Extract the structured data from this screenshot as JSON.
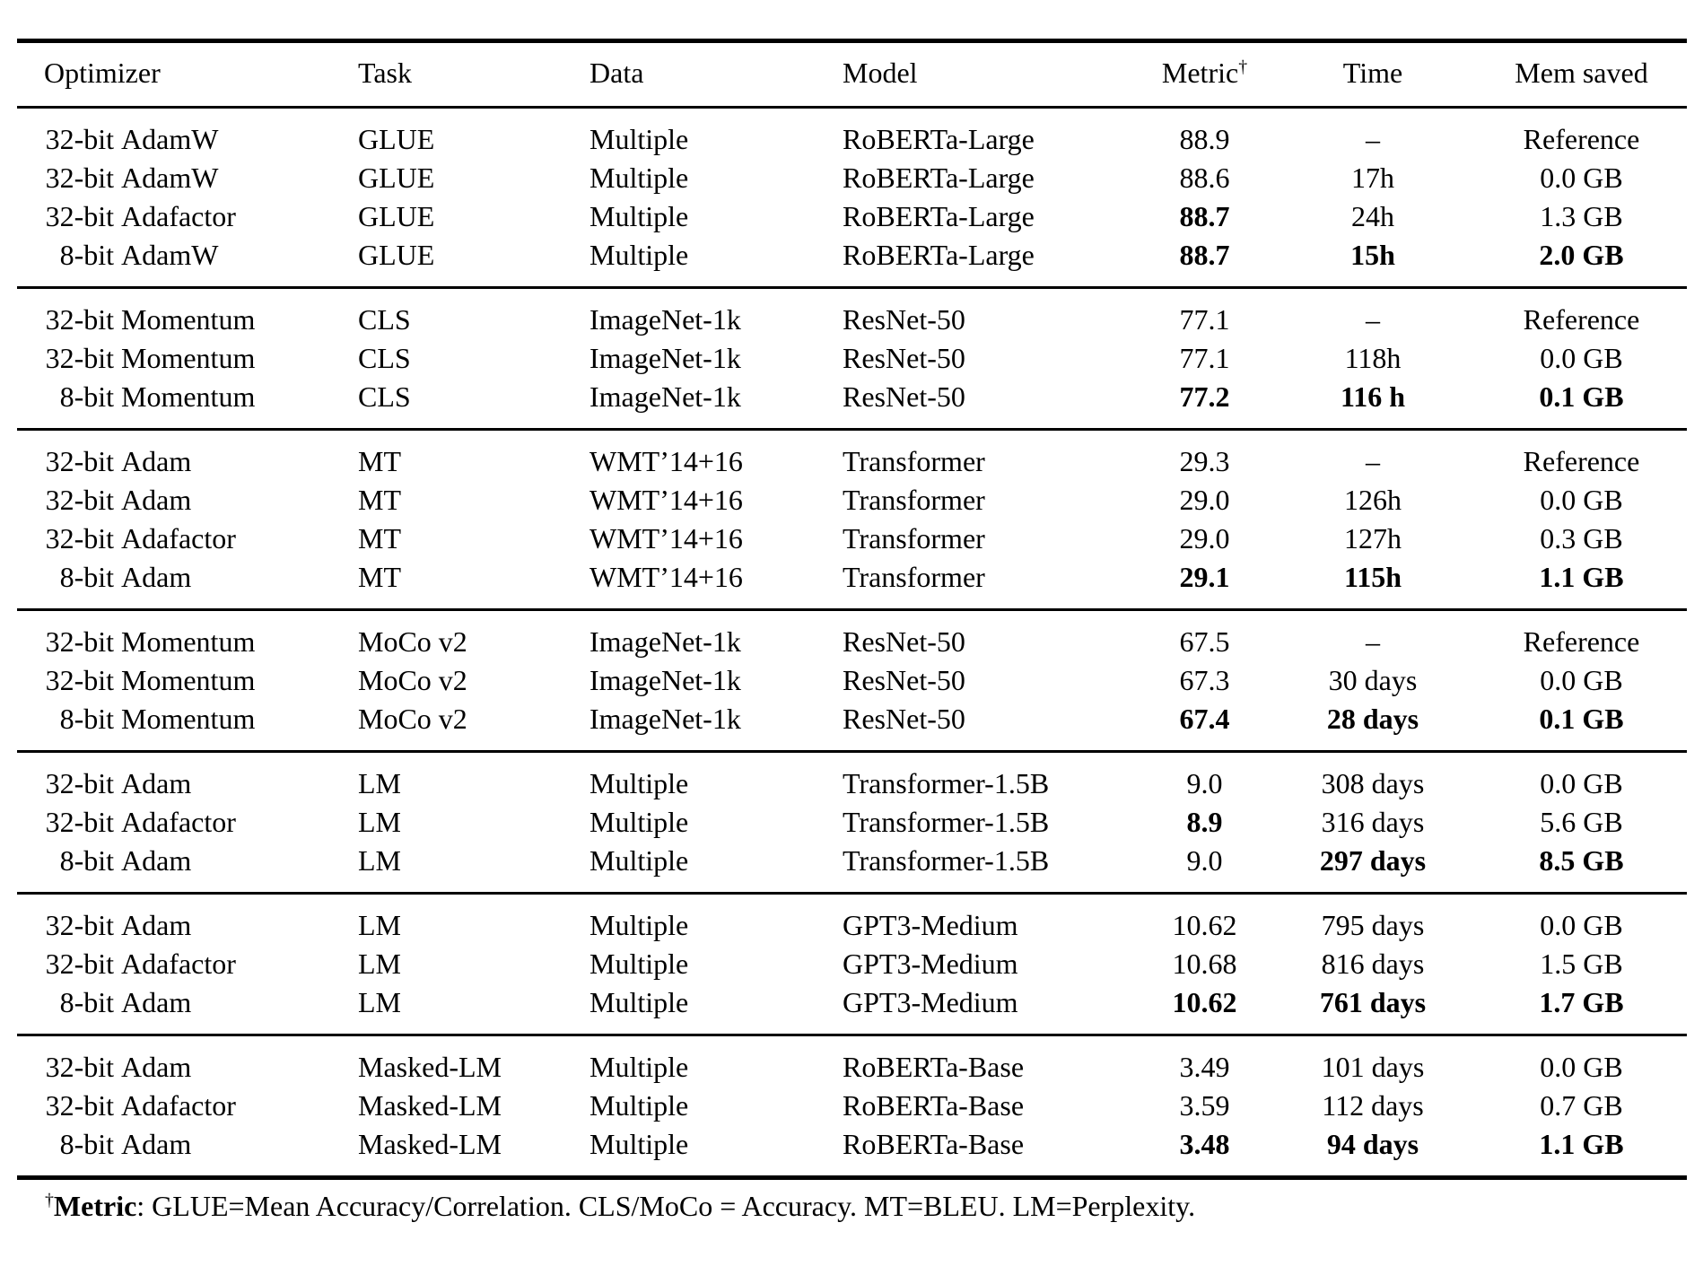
{
  "table": {
    "header": {
      "optimizer": "Optimizer",
      "task": "Task",
      "data": "Data",
      "model": "Model",
      "metric": "Metric",
      "metric_sup": "†",
      "time": "Time",
      "mem": "Mem saved"
    },
    "groups": [
      {
        "rows": [
          {
            "optimizer": {
              "bits": "32-bit",
              "name": "AdamW"
            },
            "task": "GLUE",
            "data": "Multiple",
            "model": "RoBERTa-Large",
            "metric": {
              "value": "88.9",
              "bold": false
            },
            "time": {
              "value": "–",
              "bold": false
            },
            "mem": {
              "value": "Reference",
              "bold": false
            }
          },
          {
            "optimizer": {
              "bits": "32-bit",
              "name": "AdamW"
            },
            "task": "GLUE",
            "data": "Multiple",
            "model": "RoBERTa-Large",
            "metric": {
              "value": "88.6",
              "bold": false
            },
            "time": {
              "value": "17h",
              "bold": false
            },
            "mem": {
              "value": "0.0 GB",
              "bold": false
            }
          },
          {
            "optimizer": {
              "bits": "32-bit",
              "name": "Adafactor"
            },
            "task": "GLUE",
            "data": "Multiple",
            "model": "RoBERTa-Large",
            "metric": {
              "value": "88.7",
              "bold": true
            },
            "time": {
              "value": "24h",
              "bold": false
            },
            "mem": {
              "value": "1.3 GB",
              "bold": false
            }
          },
          {
            "optimizer": {
              "bits": "8-bit",
              "name": "AdamW"
            },
            "task": "GLUE",
            "data": "Multiple",
            "model": "RoBERTa-Large",
            "metric": {
              "value": "88.7",
              "bold": true
            },
            "time": {
              "value": "15h",
              "bold": true
            },
            "mem": {
              "value": "2.0 GB",
              "bold": true
            }
          }
        ]
      },
      {
        "rows": [
          {
            "optimizer": {
              "bits": "32-bit",
              "name": "Momentum"
            },
            "task": "CLS",
            "data": "ImageNet-1k",
            "model": "ResNet-50",
            "metric": {
              "value": "77.1",
              "bold": false
            },
            "time": {
              "value": "–",
              "bold": false
            },
            "mem": {
              "value": "Reference",
              "bold": false
            }
          },
          {
            "optimizer": {
              "bits": "32-bit",
              "name": "Momentum"
            },
            "task": "CLS",
            "data": "ImageNet-1k",
            "model": "ResNet-50",
            "metric": {
              "value": "77.1",
              "bold": false
            },
            "time": {
              "value": "118h",
              "bold": false
            },
            "mem": {
              "value": "0.0 GB",
              "bold": false
            }
          },
          {
            "optimizer": {
              "bits": "8-bit",
              "name": "Momentum"
            },
            "task": "CLS",
            "data": "ImageNet-1k",
            "model": "ResNet-50",
            "metric": {
              "value": "77.2",
              "bold": true
            },
            "time": {
              "value": "116 h",
              "bold": true
            },
            "mem": {
              "value": "0.1 GB",
              "bold": true
            }
          }
        ]
      },
      {
        "rows": [
          {
            "optimizer": {
              "bits": "32-bit",
              "name": "Adam"
            },
            "task": "MT",
            "data": "WMT’14+16",
            "model": "Transformer",
            "metric": {
              "value": "29.3",
              "bold": false
            },
            "time": {
              "value": "–",
              "bold": false
            },
            "mem": {
              "value": "Reference",
              "bold": false
            }
          },
          {
            "optimizer": {
              "bits": "32-bit",
              "name": "Adam"
            },
            "task": "MT",
            "data": "WMT’14+16",
            "model": "Transformer",
            "metric": {
              "value": "29.0",
              "bold": false
            },
            "time": {
              "value": "126h",
              "bold": false
            },
            "mem": {
              "value": "0.0 GB",
              "bold": false
            }
          },
          {
            "optimizer": {
              "bits": "32-bit",
              "name": "Adafactor"
            },
            "task": "MT",
            "data": "WMT’14+16",
            "model": "Transformer",
            "metric": {
              "value": "29.0",
              "bold": false
            },
            "time": {
              "value": "127h",
              "bold": false
            },
            "mem": {
              "value": "0.3 GB",
              "bold": false
            }
          },
          {
            "optimizer": {
              "bits": "8-bit",
              "name": "Adam"
            },
            "task": "MT",
            "data": "WMT’14+16",
            "model": "Transformer",
            "metric": {
              "value": "29.1",
              "bold": true
            },
            "time": {
              "value": "115h",
              "bold": true
            },
            "mem": {
              "value": "1.1 GB",
              "bold": true
            }
          }
        ]
      },
      {
        "rows": [
          {
            "optimizer": {
              "bits": "32-bit",
              "name": "Momentum"
            },
            "task": "MoCo v2",
            "data": "ImageNet-1k",
            "model": "ResNet-50",
            "metric": {
              "value": "67.5",
              "bold": false
            },
            "time": {
              "value": "–",
              "bold": false
            },
            "mem": {
              "value": "Reference",
              "bold": false
            }
          },
          {
            "optimizer": {
              "bits": "32-bit",
              "name": "Momentum"
            },
            "task": "MoCo v2",
            "data": "ImageNet-1k",
            "model": "ResNet-50",
            "metric": {
              "value": "67.3",
              "bold": false
            },
            "time": {
              "value": "30 days",
              "bold": false
            },
            "mem": {
              "value": "0.0 GB",
              "bold": false
            }
          },
          {
            "optimizer": {
              "bits": "8-bit",
              "name": "Momentum"
            },
            "task": "MoCo v2",
            "data": "ImageNet-1k",
            "model": "ResNet-50",
            "metric": {
              "value": "67.4",
              "bold": true
            },
            "time": {
              "value": "28 days",
              "bold": true
            },
            "mem": {
              "value": "0.1 GB",
              "bold": true
            }
          }
        ]
      },
      {
        "rows": [
          {
            "optimizer": {
              "bits": "32-bit",
              "name": "Adam"
            },
            "task": "LM",
            "data": "Multiple",
            "model": "Transformer-1.5B",
            "metric": {
              "value": "9.0",
              "bold": false
            },
            "time": {
              "value": "308 days",
              "bold": false
            },
            "mem": {
              "value": "0.0 GB",
              "bold": false
            }
          },
          {
            "optimizer": {
              "bits": "32-bit",
              "name": "Adafactor"
            },
            "task": "LM",
            "data": "Multiple",
            "model": "Transformer-1.5B",
            "metric": {
              "value": "8.9",
              "bold": true
            },
            "time": {
              "value": "316 days",
              "bold": false
            },
            "mem": {
              "value": "5.6 GB",
              "bold": false
            }
          },
          {
            "optimizer": {
              "bits": "8-bit",
              "name": "Adam"
            },
            "task": "LM",
            "data": "Multiple",
            "model": "Transformer-1.5B",
            "metric": {
              "value": "9.0",
              "bold": false
            },
            "time": {
              "value": "297 days",
              "bold": true
            },
            "mem": {
              "value": "8.5 GB",
              "bold": true
            }
          }
        ]
      },
      {
        "rows": [
          {
            "optimizer": {
              "bits": "32-bit",
              "name": "Adam"
            },
            "task": "LM",
            "data": "Multiple",
            "model": "GPT3-Medium",
            "metric": {
              "value": "10.62",
              "bold": false
            },
            "time": {
              "value": "795 days",
              "bold": false
            },
            "mem": {
              "value": "0.0 GB",
              "bold": false
            }
          },
          {
            "optimizer": {
              "bits": "32-bit",
              "name": "Adafactor"
            },
            "task": "LM",
            "data": "Multiple",
            "model": "GPT3-Medium",
            "metric": {
              "value": "10.68",
              "bold": false
            },
            "time": {
              "value": "816 days",
              "bold": false
            },
            "mem": {
              "value": "1.5 GB",
              "bold": false
            }
          },
          {
            "optimizer": {
              "bits": "8-bit",
              "name": "Adam"
            },
            "task": "LM",
            "data": "Multiple",
            "model": "GPT3-Medium",
            "metric": {
              "value": "10.62",
              "bold": true
            },
            "time": {
              "value": "761 days",
              "bold": true
            },
            "mem": {
              "value": "1.7 GB",
              "bold": true
            }
          }
        ]
      },
      {
        "rows": [
          {
            "optimizer": {
              "bits": "32-bit",
              "name": "Adam"
            },
            "task": "Masked-LM",
            "data": "Multiple",
            "model": "RoBERTa-Base",
            "metric": {
              "value": "3.49",
              "bold": false
            },
            "time": {
              "value": "101 days",
              "bold": false
            },
            "mem": {
              "value": "0.0 GB",
              "bold": false
            }
          },
          {
            "optimizer": {
              "bits": "32-bit",
              "name": "Adafactor"
            },
            "task": "Masked-LM",
            "data": "Multiple",
            "model": "RoBERTa-Base",
            "metric": {
              "value": "3.59",
              "bold": false
            },
            "time": {
              "value": "112 days",
              "bold": false
            },
            "mem": {
              "value": "0.7 GB",
              "bold": false
            }
          },
          {
            "optimizer": {
              "bits": "8-bit",
              "name": "Adam"
            },
            "task": "Masked-LM",
            "data": "Multiple",
            "model": "RoBERTa-Base",
            "metric": {
              "value": "3.48",
              "bold": true
            },
            "time": {
              "value": "94 days",
              "bold": true
            },
            "mem": {
              "value": "1.1 GB",
              "bold": true
            }
          }
        ]
      }
    ],
    "footnote": {
      "sup": "†",
      "label": "Metric",
      "text": ": GLUE=Mean Accuracy/Correlation. CLS/MoCo = Accuracy. MT=BLEU. LM=Perplexity."
    }
  }
}
